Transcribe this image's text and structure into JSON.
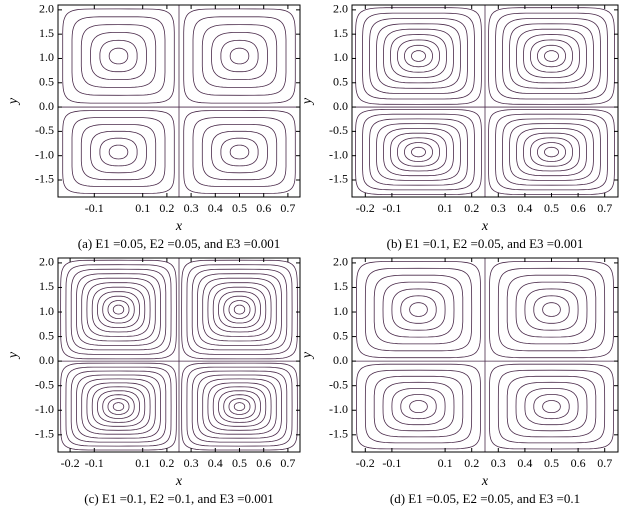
{
  "chart_data": [
    {
      "type": "contour",
      "caption": "(a) E1 =0.05, E2 =0.05, and E3 =0.001",
      "xlabel": "x",
      "ylabel": "y",
      "xlim": [
        -0.25,
        0.75
      ],
      "ylim": [
        -1.85,
        2.1
      ],
      "xticks": [
        -0.1,
        0.1,
        0.2,
        0.3,
        0.4,
        0.5,
        0.6,
        0.7
      ],
      "yticks": [
        {
          "value": 2,
          "label": "2.0"
        },
        1.5,
        {
          "value": 1,
          "label": "1.0"
        },
        0.5,
        {
          "value": 0,
          "label": "0.0"
        },
        -0.5,
        {
          "value": -1,
          "label": "-1.0"
        },
        -1.5
      ]
    },
    {
      "type": "contour",
      "caption": "(b) E1 =0.1, E2 =0.05, and E3 =0.001",
      "xlabel": "x",
      "ylabel": "y",
      "xlim": [
        -0.25,
        0.75
      ],
      "ylim": [
        -1.85,
        2.1
      ],
      "xticks": [
        -0.2,
        -0.1,
        0.1,
        0.2,
        0.3,
        0.4,
        0.5,
        0.6,
        0.7
      ],
      "yticks": [
        {
          "value": 2,
          "label": "2.0"
        },
        1.5,
        {
          "value": 1,
          "label": "1.0"
        },
        0.5,
        {
          "value": 0,
          "label": "0.0"
        },
        -0.5,
        {
          "value": -1,
          "label": "-1.0"
        },
        -1.5
      ]
    },
    {
      "type": "contour",
      "caption": "(c) E1 =0.1, E2 =0.1, and E3 =0.001",
      "xlabel": "x",
      "ylabel": "y",
      "xlim": [
        -0.25,
        0.75
      ],
      "ylim": [
        -1.85,
        2.1
      ],
      "xticks": [
        -0.2,
        -0.1,
        0.1,
        0.2,
        0.3,
        0.4,
        0.5,
        0.6,
        0.7
      ],
      "yticks": [
        {
          "value": 2,
          "label": "2.0"
        },
        1.5,
        {
          "value": 1,
          "label": "1.0"
        },
        0.5,
        {
          "value": 0,
          "label": "0.0"
        },
        -0.5,
        {
          "value": -1,
          "label": "-1.0"
        },
        -1.5
      ]
    },
    {
      "type": "contour",
      "caption": "(d) E1 =0.05, E2 =0.05, and E3 =0.1",
      "xlabel": "x",
      "ylabel": "y",
      "xlim": [
        -0.25,
        0.75
      ],
      "ylim": [
        -1.85,
        2.1
      ],
      "xticks": [
        -0.2,
        -0.1,
        0.1,
        0.2,
        0.3,
        0.4,
        0.5,
        0.6,
        0.7
      ],
      "yticks": [
        {
          "value": 2,
          "label": "2.0"
        },
        1.5,
        {
          "value": 1,
          "label": "1.0"
        },
        0.5,
        {
          "value": 0,
          "label": "0.0"
        },
        -0.5,
        {
          "value": -1,
          "label": "-1.0"
        },
        -1.5
      ]
    }
  ]
}
